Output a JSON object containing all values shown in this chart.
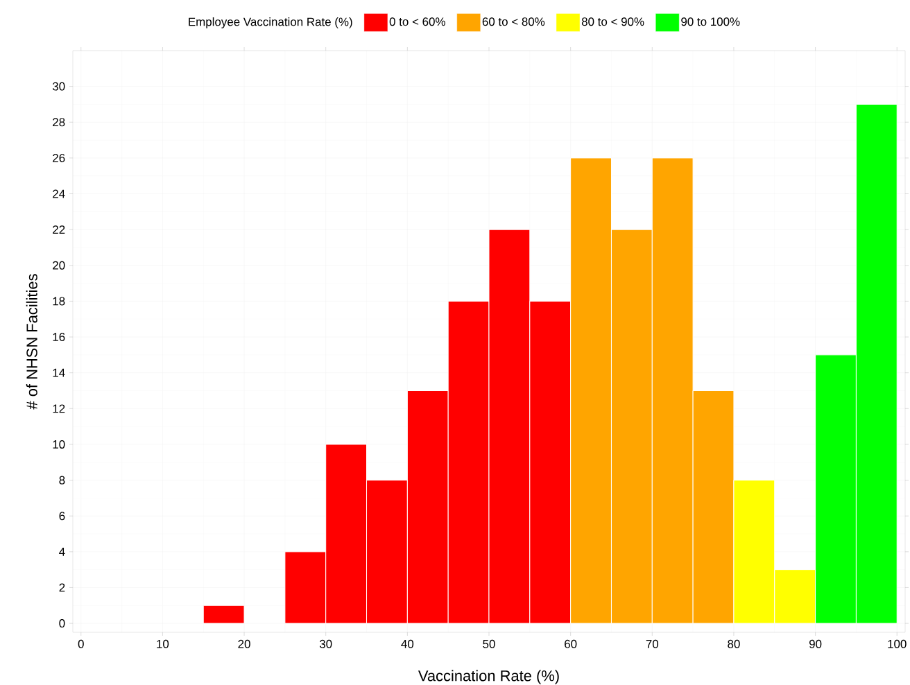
{
  "chart_data": {
    "type": "histogram",
    "xlabel": "Vaccination Rate (%)",
    "ylabel": "# of NHSN Facilities",
    "legend_title": "Employee Vaccination Rate (%)",
    "bins": [
      0,
      5,
      10,
      15,
      20,
      25,
      30,
      35,
      40,
      45,
      50,
      55,
      60,
      65,
      70,
      75,
      80,
      85,
      90,
      95,
      100
    ],
    "series": [
      {
        "name": "0 to <  60%",
        "color": "#ff0000",
        "values": [
          0,
          0,
          0,
          1,
          0,
          4,
          10,
          8,
          13,
          18,
          22,
          18,
          null,
          null,
          null,
          null,
          null,
          null,
          null,
          null
        ]
      },
      {
        "name": "60 to <  80%",
        "color": "#ffa500",
        "values": [
          null,
          null,
          null,
          null,
          null,
          null,
          null,
          null,
          null,
          null,
          null,
          null,
          26,
          22,
          26,
          13,
          null,
          null,
          null,
          null
        ]
      },
      {
        "name": "80 to <  90%",
        "color": "#ffff00",
        "values": [
          null,
          null,
          null,
          null,
          null,
          null,
          null,
          null,
          null,
          null,
          null,
          null,
          null,
          null,
          null,
          null,
          8,
          3,
          null,
          null
        ]
      },
      {
        "name": "90 to 100%",
        "color": "#00ff00",
        "values": [
          null,
          null,
          null,
          null,
          null,
          null,
          null,
          null,
          null,
          null,
          null,
          null,
          null,
          null,
          null,
          null,
          null,
          null,
          15,
          29
        ]
      }
    ],
    "xlim": [
      -1,
      101
    ],
    "ylim": [
      -0.5,
      32
    ],
    "xticks": [
      0,
      10,
      20,
      30,
      40,
      50,
      60,
      70,
      80,
      90,
      100
    ],
    "yticks": [
      0,
      2,
      4,
      6,
      8,
      10,
      12,
      14,
      16,
      18,
      20,
      22,
      24,
      26,
      28,
      30
    ],
    "grid": true,
    "legend": "top"
  }
}
